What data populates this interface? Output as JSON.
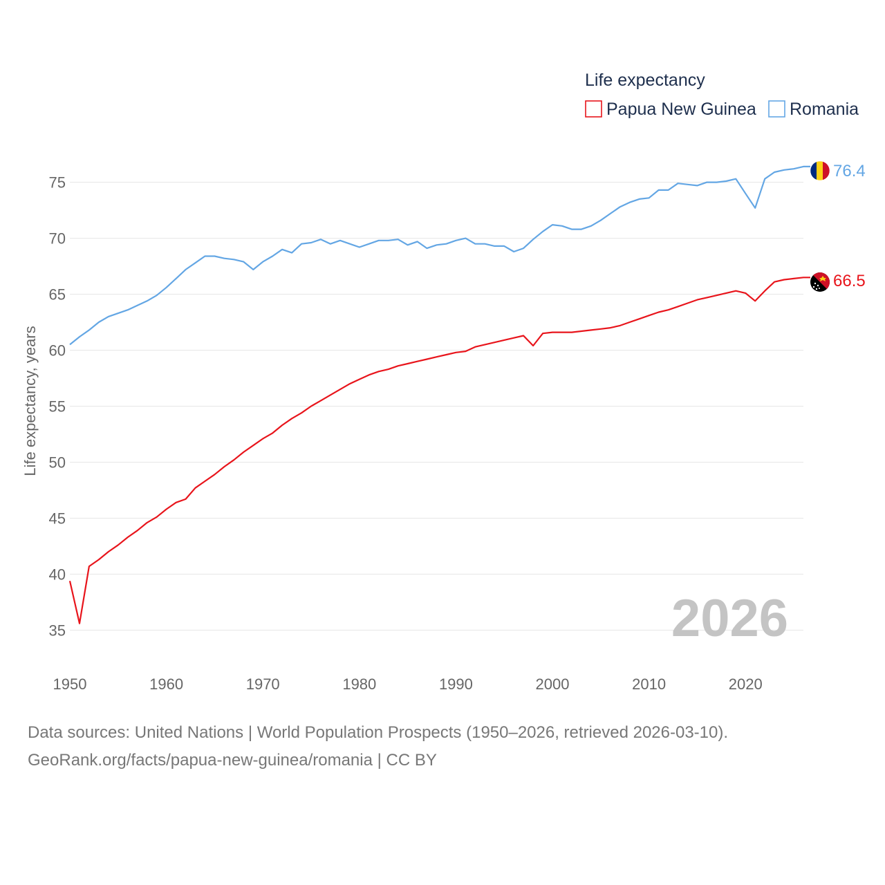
{
  "chart_data": {
    "type": "line",
    "title": "",
    "legend_title": "Life expectancy",
    "ylabel": "Life expectancy, years",
    "xlabel": "",
    "xlim": [
      1950,
      2026
    ],
    "ylim": [
      32,
      78
    ],
    "x_ticks": [
      1950,
      1960,
      1970,
      1980,
      1990,
      2000,
      2010,
      2020
    ],
    "y_ticks": [
      35,
      40,
      45,
      50,
      55,
      60,
      65,
      70,
      75
    ],
    "grid": true,
    "legend_position": "top-right",
    "year_label": "2026",
    "x": [
      1950,
      1951,
      1952,
      1953,
      1954,
      1955,
      1956,
      1957,
      1958,
      1959,
      1960,
      1961,
      1962,
      1963,
      1964,
      1965,
      1966,
      1967,
      1968,
      1969,
      1970,
      1971,
      1972,
      1973,
      1974,
      1975,
      1976,
      1977,
      1978,
      1979,
      1980,
      1981,
      1982,
      1983,
      1984,
      1985,
      1986,
      1987,
      1988,
      1989,
      1990,
      1991,
      1992,
      1993,
      1994,
      1995,
      1996,
      1997,
      1998,
      1999,
      2000,
      2001,
      2002,
      2003,
      2004,
      2005,
      2006,
      2007,
      2008,
      2009,
      2010,
      2011,
      2012,
      2013,
      2014,
      2015,
      2016,
      2017,
      2018,
      2019,
      2020,
      2021,
      2022,
      2023,
      2024,
      2025,
      2026
    ],
    "series": [
      {
        "name": "Papua New Guinea",
        "color": "#e8141b",
        "end_label": "66.5",
        "flag": "papua-new-guinea-flag-icon",
        "values": [
          39.4,
          35.6,
          40.7,
          41.3,
          42.0,
          42.6,
          43.3,
          43.9,
          44.6,
          45.1,
          45.8,
          46.4,
          46.7,
          47.7,
          48.3,
          48.9,
          49.6,
          50.2,
          50.9,
          51.5,
          52.1,
          52.6,
          53.3,
          53.9,
          54.4,
          55.0,
          55.5,
          56.0,
          56.5,
          57.0,
          57.4,
          57.8,
          58.1,
          58.3,
          58.6,
          58.8,
          59.0,
          59.2,
          59.4,
          59.6,
          59.8,
          59.9,
          60.3,
          60.5,
          60.7,
          60.9,
          61.1,
          61.3,
          60.4,
          61.5,
          61.6,
          61.6,
          61.6,
          61.7,
          61.8,
          61.9,
          62.0,
          62.2,
          62.5,
          62.8,
          63.1,
          63.4,
          63.6,
          63.9,
          64.2,
          64.5,
          64.7,
          64.9,
          65.1,
          65.3,
          65.1,
          64.4,
          65.3,
          66.1,
          66.3,
          66.4,
          66.5
        ]
      },
      {
        "name": "Romania",
        "color": "#63a6e4",
        "end_label": "76.4",
        "flag": "romania-flag-icon",
        "values": [
          60.5,
          61.2,
          61.8,
          62.5,
          63.0,
          63.3,
          63.6,
          64.0,
          64.4,
          64.9,
          65.6,
          66.4,
          67.2,
          67.8,
          68.4,
          68.4,
          68.2,
          68.1,
          67.9,
          67.2,
          67.9,
          68.4,
          69.0,
          68.7,
          69.5,
          69.6,
          69.9,
          69.5,
          69.8,
          69.5,
          69.2,
          69.5,
          69.8,
          69.8,
          69.9,
          69.4,
          69.7,
          69.1,
          69.4,
          69.5,
          69.8,
          70.0,
          69.5,
          69.5,
          69.3,
          69.3,
          68.8,
          69.1,
          69.9,
          70.6,
          71.2,
          71.1,
          70.8,
          70.8,
          71.1,
          71.6,
          72.2,
          72.8,
          73.2,
          73.5,
          73.6,
          74.3,
          74.3,
          74.9,
          74.8,
          74.7,
          75.0,
          75.0,
          75.1,
          75.3,
          74.0,
          72.7,
          75.3,
          75.9,
          76.1,
          76.2,
          76.4
        ]
      }
    ]
  },
  "source": {
    "line1": "Data sources: United Nations | World Population Prospects (1950–2026, retrieved 2026-03-10).",
    "line2": "GeoRank.org/facts/papua-new-guinea/romania | CC BY"
  }
}
